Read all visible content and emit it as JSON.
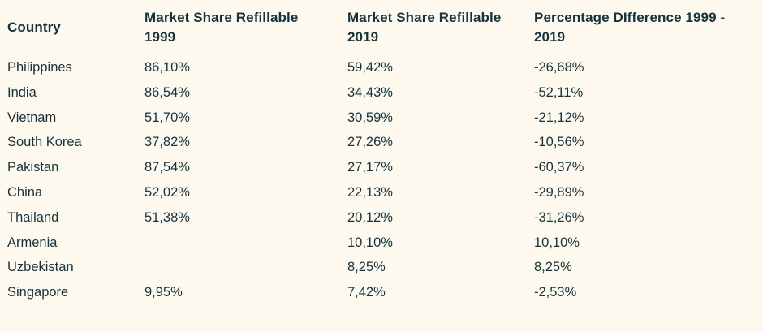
{
  "page": {
    "background_color": "#FDF9EE",
    "text_color": "#17333E"
  },
  "table": {
    "headers": [
      "Country",
      "Market Share Refillable\n1999",
      "Market Share Refillable\n2019",
      "Percentage DIfference  1999 -\n2019"
    ],
    "column_keys": [
      "country",
      "share-1999",
      "share-2019",
      "difference"
    ],
    "rows": [
      [
        "Philippines",
        "86,10%",
        "59,42%",
        "-26,68%"
      ],
      [
        "India",
        "86,54%",
        "34,43%",
        "-52,11%"
      ],
      [
        "Vietnam",
        "51,70%",
        "30,59%",
        "-21,12%"
      ],
      [
        "South Korea",
        "37,82%",
        "27,26%",
        "-10,56%"
      ],
      [
        "Pakistan",
        "87,54%",
        "27,17%",
        "-60,37%"
      ],
      [
        "China",
        "52,02%",
        "22,13%",
        "-29,89%"
      ],
      [
        "Thailand",
        "51,38%",
        "20,12%",
        "-31,26%"
      ],
      [
        "Armenia",
        "",
        "10,10%",
        "10,10%"
      ],
      [
        "Uzbekistan",
        "",
        "8,25%",
        "8,25%"
      ],
      [
        "Singapore",
        "9,95%",
        "7,42%",
        "-2,53%"
      ]
    ]
  },
  "chart_data": {
    "type": "table",
    "title": "",
    "columns": [
      "Country",
      "Market Share Refillable 1999",
      "Market Share Refillable 2019",
      "Percentage DIfference  1999 - 2019"
    ],
    "rows": [
      {
        "country": "Philippines",
        "market_share_refillable_1999": "86,10%",
        "market_share_refillable_2019": "59,42%",
        "percentage_difference_1999_2019": "-26,68%"
      },
      {
        "country": "India",
        "market_share_refillable_1999": "86,54%",
        "market_share_refillable_2019": "34,43%",
        "percentage_difference_1999_2019": "-52,11%"
      },
      {
        "country": "Vietnam",
        "market_share_refillable_1999": "51,70%",
        "market_share_refillable_2019": "30,59%",
        "percentage_difference_1999_2019": "-21,12%"
      },
      {
        "country": "South Korea",
        "market_share_refillable_1999": "37,82%",
        "market_share_refillable_2019": "27,26%",
        "percentage_difference_1999_2019": "-10,56%"
      },
      {
        "country": "Pakistan",
        "market_share_refillable_1999": "87,54%",
        "market_share_refillable_2019": "27,17%",
        "percentage_difference_1999_2019": "-60,37%"
      },
      {
        "country": "China",
        "market_share_refillable_1999": "52,02%",
        "market_share_refillable_2019": "22,13%",
        "percentage_difference_1999_2019": "-29,89%"
      },
      {
        "country": "Thailand",
        "market_share_refillable_1999": "51,38%",
        "market_share_refillable_2019": "20,12%",
        "percentage_difference_1999_2019": "-31,26%"
      },
      {
        "country": "Armenia",
        "market_share_refillable_1999": "",
        "market_share_refillable_2019": "10,10%",
        "percentage_difference_1999_2019": "10,10%"
      },
      {
        "country": "Uzbekistan",
        "market_share_refillable_1999": "",
        "market_share_refillable_2019": "8,25%",
        "percentage_difference_1999_2019": "8,25%"
      },
      {
        "country": "Singapore",
        "market_share_refillable_1999": "9,95%",
        "market_share_refillable_2019": "7,42%",
        "percentage_difference_1999_2019": "-2,53%"
      }
    ]
  }
}
